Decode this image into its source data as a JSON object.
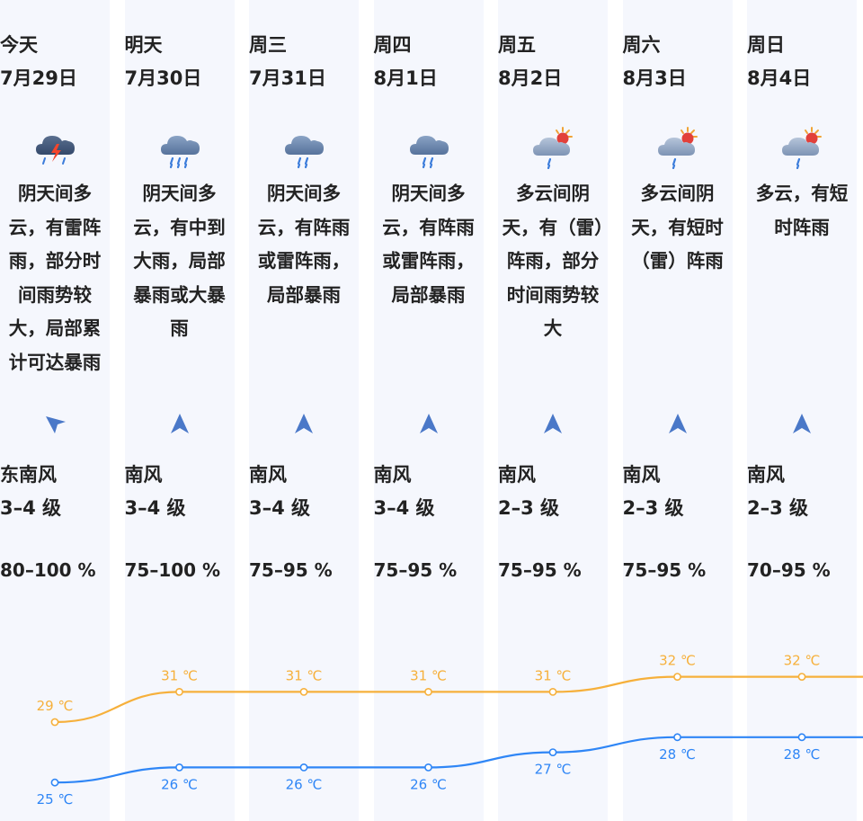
{
  "colors": {
    "column_bg": "#f5f7fd",
    "high_line": "#f6b03b",
    "low_line": "#2f86f6",
    "arrow": "#4a78c8"
  },
  "days": [
    {
      "day": "今天",
      "date": "7月29日",
      "icon": "thunderstorm-cloud-icon",
      "desc": "阴天间多云，有雷阵雨，部分时间雨势较大，局部累计可达暴雨",
      "wind_dir": "东南风",
      "wind_level": "3–4 级",
      "humidity": "80–100 %",
      "wind_arrow": "arrow-up-left-icon"
    },
    {
      "day": "明天",
      "date": "7月30日",
      "icon": "heavy-rain-cloud-icon",
      "desc": "阴天间多云，有中到大雨，局部暴雨或大暴雨",
      "wind_dir": "南风",
      "wind_level": "3–4 级",
      "humidity": "75–100 %",
      "wind_arrow": "arrow-up-icon"
    },
    {
      "day": "周三",
      "date": "7月31日",
      "icon": "rain-cloud-icon",
      "desc": "阴天间多云，有阵雨或雷阵雨，局部暴雨",
      "wind_dir": "南风",
      "wind_level": "3–4 级",
      "humidity": "75–95 %",
      "wind_arrow": "arrow-up-icon"
    },
    {
      "day": "周四",
      "date": "8月1日",
      "icon": "rain-cloud-icon",
      "desc": "阴天间多云，有阵雨或雷阵雨，局部暴雨",
      "wind_dir": "南风",
      "wind_level": "3–4 级",
      "humidity": "75–95 %",
      "wind_arrow": "arrow-up-icon"
    },
    {
      "day": "周五",
      "date": "8月2日",
      "icon": "sun-cloud-rain-icon",
      "desc": "多云间阴天，有（雷）阵雨，部分时间雨势较大",
      "wind_dir": "南风",
      "wind_level": "2–3 级",
      "humidity": "75–95 %",
      "wind_arrow": "arrow-up-icon"
    },
    {
      "day": "周六",
      "date": "8月3日",
      "icon": "sun-cloud-rain-icon",
      "desc": "多云间阴天，有短时（雷）阵雨",
      "wind_dir": "南风",
      "wind_level": "2–3 级",
      "humidity": "75–95 %",
      "wind_arrow": "arrow-up-icon"
    },
    {
      "day": "周日",
      "date": "8月4日",
      "icon": "sun-cloud-rain-icon",
      "desc": "多云，有短时阵雨",
      "wind_dir": "南风",
      "wind_level": "2–3 级",
      "humidity": "70–95 %",
      "wind_arrow": "arrow-up-icon"
    }
  ],
  "chart_data": {
    "type": "line",
    "categories": [
      "7月29日",
      "7月30日",
      "7月31日",
      "8月1日",
      "8月2日",
      "8月3日",
      "8月4日"
    ],
    "series": [
      {
        "name": "high",
        "values": [
          29,
          31,
          31,
          31,
          31,
          32,
          32
        ],
        "labels": [
          "29 ℃",
          "31 ℃",
          "31 ℃",
          "31 ℃",
          "31 ℃",
          "32 ℃",
          "32 ℃"
        ]
      },
      {
        "name": "low",
        "values": [
          25,
          26,
          26,
          26,
          27,
          28,
          28
        ],
        "labels": [
          "25 ℃",
          "26 ℃",
          "26 ℃",
          "26 ℃",
          "27 ℃",
          "28 ℃",
          "28 ℃"
        ]
      }
    ],
    "unit": "℃"
  }
}
